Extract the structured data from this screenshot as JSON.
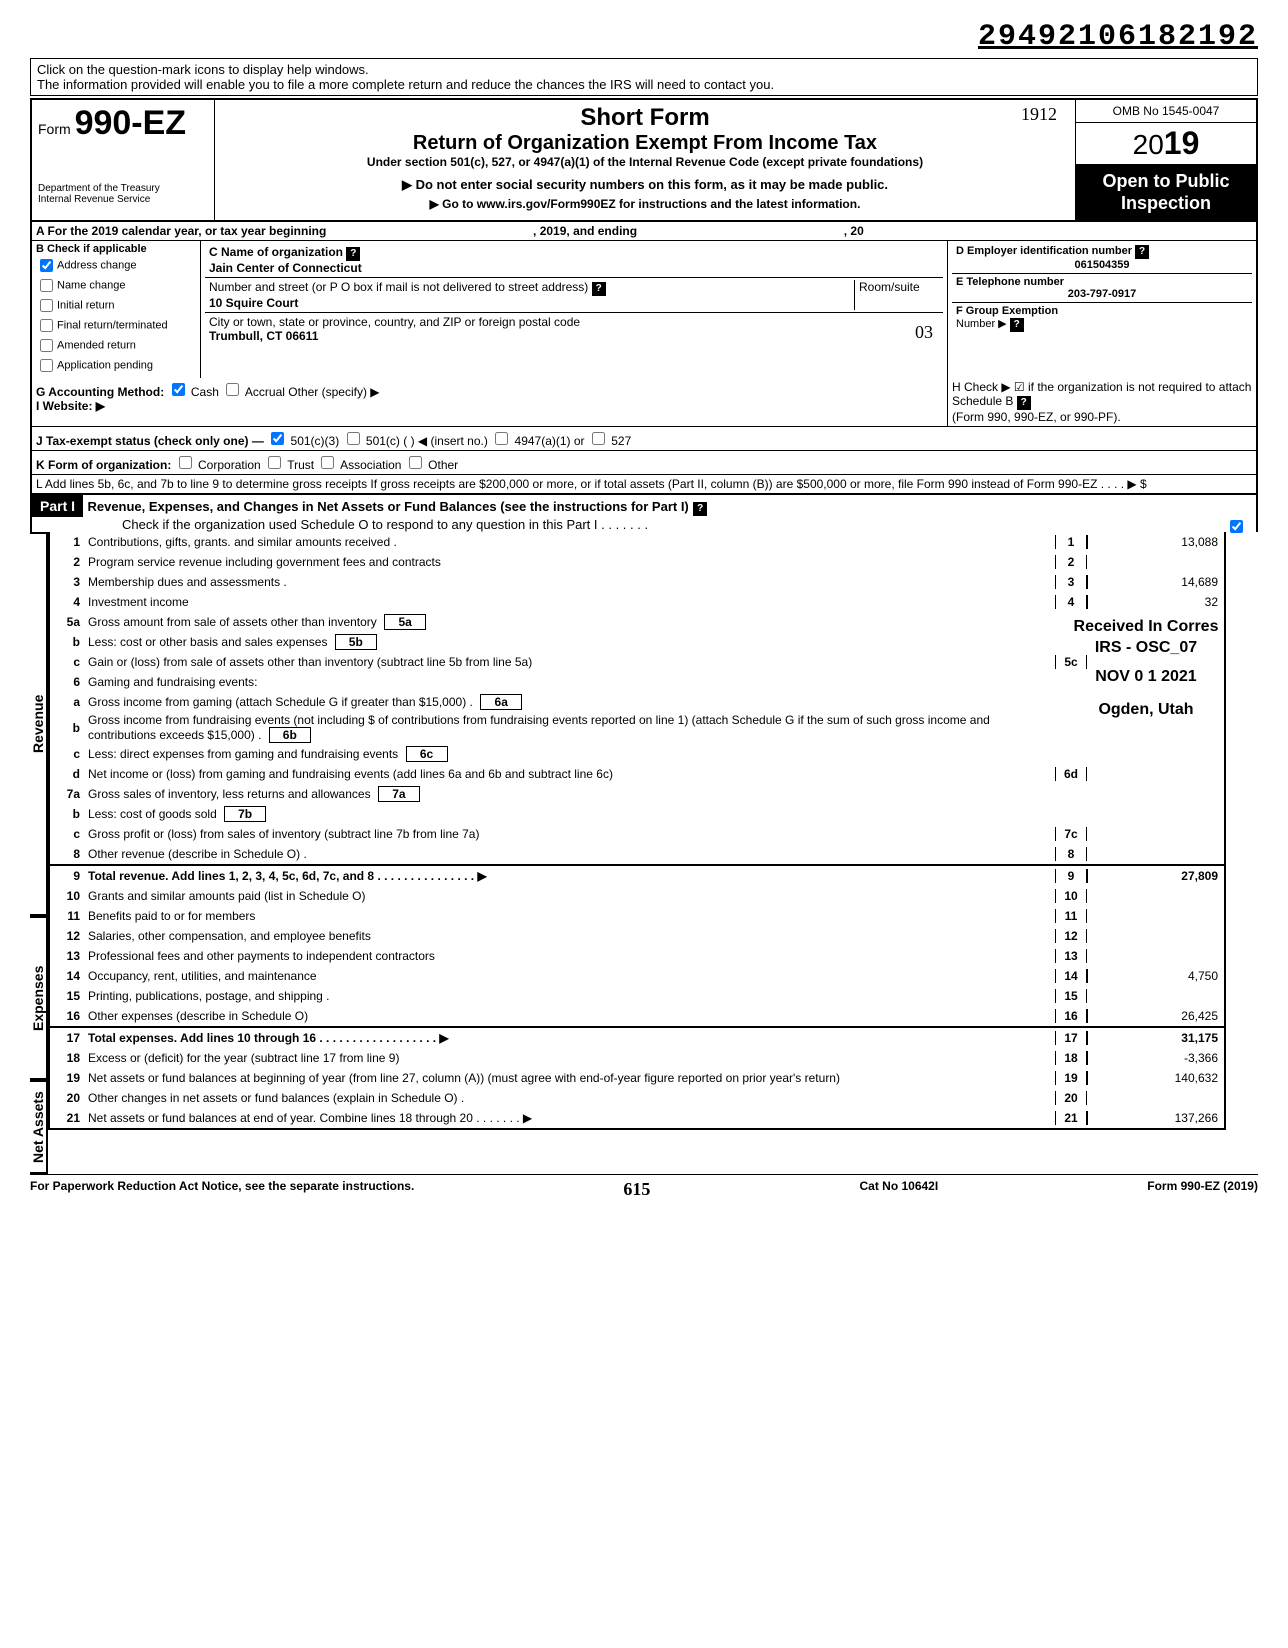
{
  "dln": "29492106182192",
  "help_text1": "Click on the question-mark icons to display help windows.",
  "help_text2": "The information provided will enable you to file a more complete return and reduce the chances the IRS will need to contact you.",
  "form_label": "Form",
  "form_number": "990-EZ",
  "dept": "Department of the Treasury\nInternal Revenue Service",
  "title1": "Short Form",
  "title2": "Return of Organization Exempt From Income Tax",
  "title3": "Under section 501(c), 527, or 4947(a)(1) of the Internal Revenue Code (except private foundations)",
  "title4": "▶ Do not enter social security numbers on this form, as it may be made public.",
  "title5": "▶ Go to www.irs.gov/Form990EZ for instructions and the latest information.",
  "omb": "OMB No 1545-0047",
  "year_prefix": "20",
  "year_bold": "19",
  "inspect1": "Open to Public",
  "inspect2": "Inspection",
  "line_a": "A For the 2019 calendar year, or tax year beginning",
  "line_a_mid": ", 2019, and ending",
  "line_a_end": ", 20",
  "b_label": "B Check if applicable",
  "b_opts": [
    "Address change",
    "Name change",
    "Initial return",
    "Final return/terminated",
    "Amended return",
    "Application pending"
  ],
  "b_checked": [
    true,
    false,
    false,
    false,
    false,
    false
  ],
  "c_label": "C  Name of organization",
  "c_val": "Jain Center of Connecticut",
  "addr_label": "Number and street (or P O  box if mail is not delivered to street address)",
  "room_label": "Room/suite",
  "addr_val": "10 Squire Court",
  "city_label": "City or town, state or province, country, and ZIP or foreign postal code",
  "city_val": "Trumbull, CT  06611",
  "d_label": "D Employer identification number",
  "d_val": "061504359",
  "e_label": "E Telephone number",
  "e_val": "203-797-0917",
  "f_label": "F Group Exemption",
  "f_label2": "Number ▶",
  "g_label": "G Accounting Method:",
  "g_cash": "Cash",
  "g_accrual": "Accrual",
  "g_other": "Other (specify) ▶",
  "i_label": "I  Website: ▶",
  "h_label": "H Check ▶ ☑ if the organization is not required to attach Schedule B",
  "h_sub": "(Form 990, 990-EZ, or 990-PF).",
  "j_label": "J Tax-exempt status (check only one) —",
  "j_opts": [
    "501(c)(3)",
    "501(c) (          ) ◀ (insert no.)",
    "4947(a)(1) or",
    "527"
  ],
  "k_label": "K Form of organization:",
  "k_opts": [
    "Corporation",
    "Trust",
    "Association",
    "Other"
  ],
  "l_label": "L Add lines 5b, 6c, and 7b to line 9 to determine gross receipts  If gross receipts are $200,000 or more, or if total assets (Part II, column (B)) are $500,000 or more, file Form 990 instead of Form 990-EZ .    .        .     .     ▶  $",
  "part1": "Part I",
  "part1_title": "Revenue, Expenses, and Changes in Net Assets or Fund Balances (see the instructions for Part I)",
  "part1_sub": "Check if the organization used Schedule O to respond to any question in this Part I .   .    .    .    .    .   .",
  "sections": {
    "revenue_label": "Revenue",
    "expenses_label": "Expenses",
    "netassets_label": "Net Assets"
  },
  "lines": [
    {
      "n": "1",
      "t": "Contributions, gifts, grants. and similar amounts received .",
      "box": "1",
      "amt": "13,088"
    },
    {
      "n": "2",
      "t": "Program service revenue including government fees and contracts",
      "box": "2",
      "amt": ""
    },
    {
      "n": "3",
      "t": "Membership dues and assessments .",
      "box": "3",
      "amt": "14,689"
    },
    {
      "n": "4",
      "t": "Investment income",
      "box": "4",
      "amt": "32"
    },
    {
      "n": "5a",
      "t": "Gross amount from sale of assets other than inventory",
      "sub": "5a"
    },
    {
      "n": "b",
      "t": "Less: cost or other basis and sales expenses",
      "sub": "5b"
    },
    {
      "n": "c",
      "t": "Gain or (loss) from sale of assets other than inventory (subtract line 5b from line 5a)",
      "box": "5c",
      "amt": ""
    },
    {
      "n": "6",
      "t": "Gaming and fundraising events:"
    },
    {
      "n": "a",
      "t": "Gross income from gaming (attach Schedule G if greater than $15,000) .",
      "sub": "6a"
    },
    {
      "n": "b",
      "t": "Gross income from fundraising events (not including  $                    of contributions from fundraising events reported on line 1) (attach Schedule G if the sum of such gross income and contributions exceeds $15,000) .",
      "sub": "6b"
    },
    {
      "n": "c",
      "t": "Less: direct expenses from gaming and fundraising events",
      "sub": "6c"
    },
    {
      "n": "d",
      "t": "Net income or (loss) from gaming and fundraising events (add lines 6a and 6b and subtract line 6c)",
      "box": "6d",
      "amt": ""
    },
    {
      "n": "7a",
      "t": "Gross sales of inventory, less returns and allowances",
      "sub": "7a"
    },
    {
      "n": "b",
      "t": "Less: cost of goods sold",
      "sub": "7b"
    },
    {
      "n": "c",
      "t": "Gross profit or (loss) from sales of inventory (subtract line 7b from line 7a)",
      "box": "7c",
      "amt": ""
    },
    {
      "n": "8",
      "t": "Other revenue (describe in Schedule O) .",
      "box": "8",
      "amt": ""
    },
    {
      "n": "9",
      "t": "Total revenue. Add lines 1, 2, 3, 4, 5c, 6d, 7c, and 8   .   .   .   .   .   .   .   .   .   .   .   .   .   .   . ▶",
      "box": "9",
      "amt": "27,809",
      "bold": true
    },
    {
      "n": "10",
      "t": "Grants and similar amounts paid (list in Schedule O)",
      "box": "10",
      "amt": ""
    },
    {
      "n": "11",
      "t": "Benefits paid to or for members",
      "box": "11",
      "amt": ""
    },
    {
      "n": "12",
      "t": "Salaries, other compensation, and employee benefits",
      "box": "12",
      "amt": ""
    },
    {
      "n": "13",
      "t": "Professional fees and other payments to independent contractors",
      "box": "13",
      "amt": ""
    },
    {
      "n": "14",
      "t": "Occupancy, rent, utilities, and maintenance",
      "box": "14",
      "amt": "4,750"
    },
    {
      "n": "15",
      "t": "Printing, publications, postage, and shipping .",
      "box": "15",
      "amt": ""
    },
    {
      "n": "16",
      "t": "Other expenses (describe in Schedule O)",
      "box": "16",
      "amt": "26,425"
    },
    {
      "n": "17",
      "t": "Total expenses. Add lines 10 through 16   .   .   .   .   .   .   .   .   .   .   .   .   .   .   .   .   .   . ▶",
      "box": "17",
      "amt": "31,175",
      "bold": true
    },
    {
      "n": "18",
      "t": "Excess or (deficit) for the year (subtract line 17 from line 9)",
      "box": "18",
      "amt": "-3,366"
    },
    {
      "n": "19",
      "t": "Net assets or fund balances at beginning of year (from line 27, column (A)) (must agree with end-of-year figure reported on prior year's return)",
      "box": "19",
      "amt": "140,632"
    },
    {
      "n": "20",
      "t": "Other changes in net assets or fund balances (explain in Schedule O) .",
      "box": "20",
      "amt": ""
    },
    {
      "n": "21",
      "t": "Net assets or fund balances at end of year. Combine lines 18 through 20   .   .   .   .   .   .   . ▶",
      "box": "21",
      "amt": "137,266"
    }
  ],
  "stamp": {
    "l1": "Received In Corres",
    "l2": "IRS - OSC_07",
    "l3": "NOV 0 1 2021",
    "l4": "Ogden, Utah"
  },
  "footer_left": "For Paperwork Reduction Act Notice, see the separate instructions.",
  "footer_mid": "Cat No  10642I",
  "footer_right": "Form 990-EZ (2019)",
  "handwritten_topright": "1912",
  "handwritten_city": "03",
  "handwritten_bottom": "615"
}
